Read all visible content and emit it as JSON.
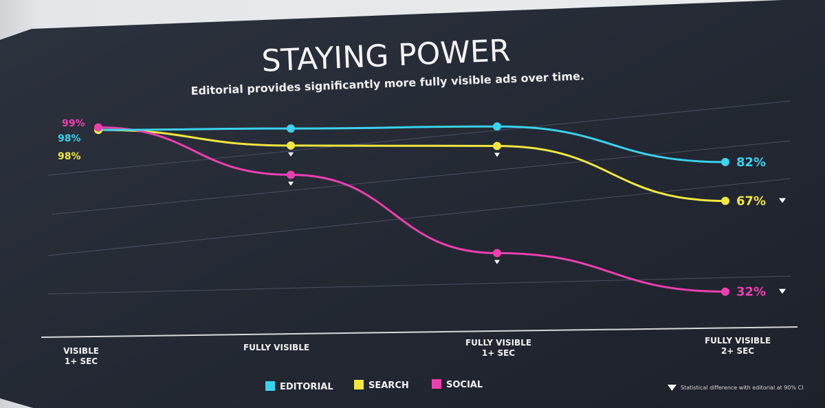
{
  "chart_data": {
    "type": "line",
    "title": "STAYING POWER",
    "subtitle": "Editorial provides significantly more fully visible ads over time.",
    "categories": [
      "VISIBLE\n1+ SEC",
      "FULLY VISIBLE",
      "FULLY VISIBLE\n1+ SEC",
      "FULLY VISIBLE\n2+ SEC"
    ],
    "ylim": [
      25,
      100
    ],
    "grid": true,
    "legend_position": "bottom-center",
    "series": [
      {
        "name": "EDITORIAL",
        "color": "#3ad3ee",
        "values": [
          98,
          98,
          98,
          82
        ],
        "start_label": "98%",
        "end_label": "82%",
        "markers": [
          false,
          false,
          false,
          false
        ]
      },
      {
        "name": "SEARCH",
        "color": "#f2e73f",
        "values": [
          98,
          91,
          90,
          67
        ],
        "start_label": "98%",
        "end_label": "67%",
        "markers": [
          false,
          true,
          true,
          true
        ]
      },
      {
        "name": "SOCIAL",
        "color": "#ee3fb1",
        "values": [
          99,
          79,
          46,
          32
        ],
        "start_label": "99%",
        "end_label": "32%",
        "markers": [
          false,
          true,
          true,
          true
        ]
      }
    ],
    "footnote": "Statistical difference with editorial at 90% CI"
  }
}
